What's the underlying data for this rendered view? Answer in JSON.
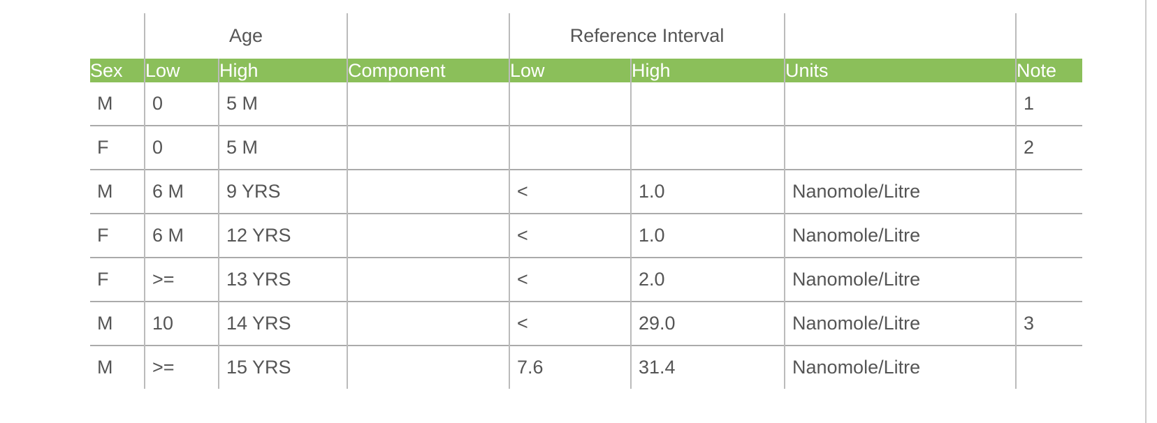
{
  "group_headers": {
    "age": "Age",
    "reference_interval": "Reference Interval"
  },
  "columns": [
    "Sex",
    "Low",
    "High",
    "Component",
    "Low",
    "High",
    "Units",
    "Note"
  ],
  "rows": [
    [
      "M",
      "0",
      "5 M",
      null,
      null,
      null,
      null,
      "1"
    ],
    [
      "F",
      "0",
      "5 M",
      null,
      null,
      null,
      null,
      "2"
    ],
    [
      "M",
      "6 M",
      "9 YRS",
      null,
      "<",
      "1.0",
      "Nanomole/Litre",
      null
    ],
    [
      "F",
      "6 M",
      "12 YRS",
      null,
      "<",
      "1.0",
      "Nanomole/Litre",
      null
    ],
    [
      "F",
      ">=",
      "13 YRS",
      null,
      "<",
      "2.0",
      "Nanomole/Litre",
      null
    ],
    [
      "M",
      "10",
      "14 YRS",
      null,
      "<",
      "29.0",
      "Nanomole/Litre",
      "3"
    ],
    [
      "M",
      ">=",
      "15 YRS",
      null,
      "7.6",
      "31.4",
      "Nanomole/Litre",
      null
    ]
  ]
}
